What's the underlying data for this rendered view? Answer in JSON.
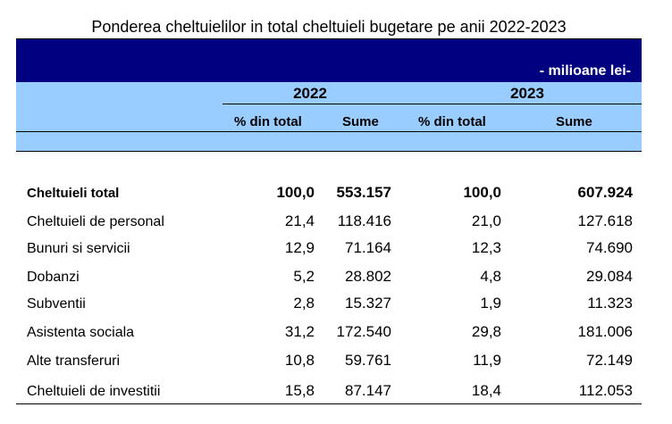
{
  "title": "Ponderea cheltuielilor in total cheltuieli bugetare pe anii 2022-2023",
  "unit": "- milioane lei-",
  "years": [
    "2022",
    "2023"
  ],
  "subheaders": [
    "% din total",
    "Sume",
    "% din total",
    "Sume"
  ],
  "rows": [
    {
      "label": "Cheltuieli total",
      "v": [
        "100,0",
        "553.157",
        "100,0",
        "607.924"
      ]
    },
    {
      "label": "Cheltuieli de personal",
      "v": [
        "21,4",
        "118.416",
        "21,0",
        "127.618"
      ]
    },
    {
      "label": "Bunuri si servicii",
      "v": [
        "12,9",
        "71.164",
        "12,3",
        "74.690"
      ]
    },
    {
      "label": "Dobanzi",
      "v": [
        "5,2",
        "28.802",
        "4,8",
        "29.084"
      ]
    },
    {
      "label": "Subventii",
      "v": [
        "2,8",
        "15.327",
        "1,9",
        "11.323"
      ]
    },
    {
      "label": "Asistenta sociala",
      "v": [
        "31,2",
        "172.540",
        "29,8",
        "181.006"
      ]
    },
    {
      "label": "Alte transferuri",
      "v": [
        "10,8",
        "59.761",
        "11,9",
        "72.149"
      ]
    },
    {
      "label": "Cheltuieli de investitii",
      "v": [
        "15,8",
        "87.147",
        "18,4",
        "112.053"
      ]
    }
  ]
}
